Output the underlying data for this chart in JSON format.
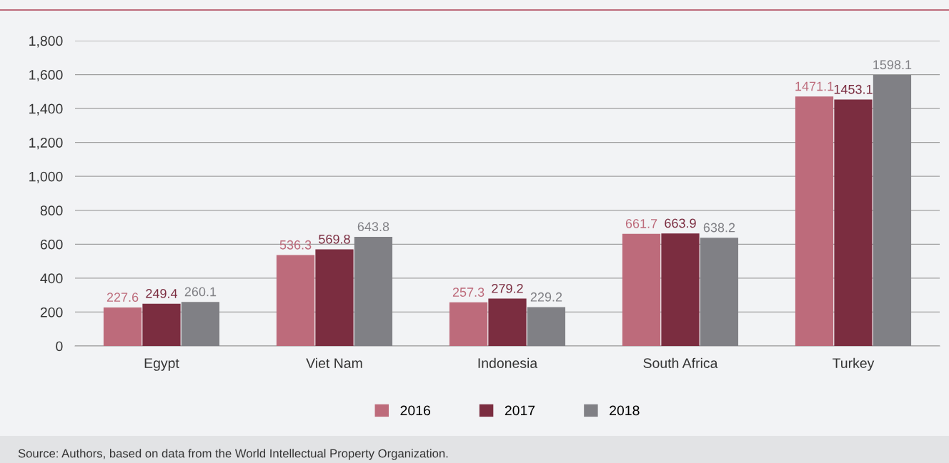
{
  "chart_data": {
    "type": "bar",
    "categories": [
      "Egypt",
      "Viet Nam",
      "Indonesia",
      "South Africa",
      "Turkey"
    ],
    "series": [
      {
        "name": "2016",
        "color": "#bd6b7b",
        "values": [
          227.6,
          536.3,
          257.3,
          661.7,
          1471.1
        ]
      },
      {
        "name": "2017",
        "color": "#7b2d40",
        "values": [
          249.4,
          569.8,
          279.2,
          663.9,
          1453.1
        ]
      },
      {
        "name": "2018",
        "color": "#808085",
        "values": [
          260.1,
          643.8,
          229.2,
          638.2,
          1598.1
        ]
      }
    ],
    "ylim": [
      0,
      1800
    ],
    "yticks": [
      0,
      200,
      400,
      600,
      800,
      {
        "value": 1000,
        "label": "1,000"
      },
      {
        "value": 1200,
        "label": "1,200"
      },
      {
        "value": 1400,
        "label": "1,400"
      },
      {
        "value": 1600,
        "label": "1,600"
      },
      {
        "value": 1800,
        "label": "1,800"
      }
    ],
    "grid": "y",
    "legend": "bottom",
    "data_labels": true,
    "annotations": [
      "Source: Authors, based on data from the World Intellectual Property Organization."
    ]
  }
}
